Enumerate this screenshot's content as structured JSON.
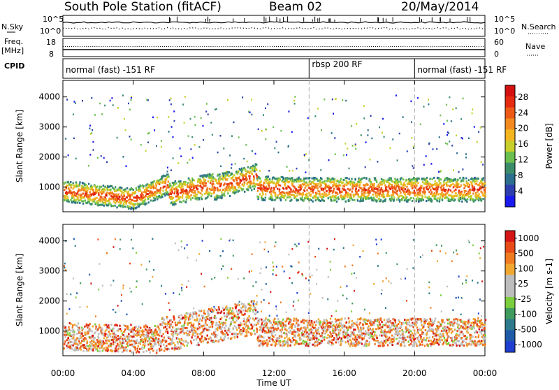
{
  "header": {
    "station": "South Pole Station (fitACF)",
    "beam": "Beam 02",
    "date": "20/May/2014"
  },
  "top_labels": {
    "nsky": "N.Sky",
    "nsearch": "N.Search",
    "freq": "Freq.",
    "freq_unit": "[MHz]",
    "nave": "Nave",
    "cpid": "CPID",
    "noise_ticks_left": [
      "10^5",
      "10^0"
    ],
    "noise_ticks_right": [
      "10^5",
      "10^0"
    ],
    "freq_ticks": [
      "18",
      "8"
    ],
    "nave_ticks": [
      "60",
      "0"
    ]
  },
  "modes": [
    {
      "label": "normal (fast) -151 RF",
      "start_h": 0,
      "end_h": 14
    },
    {
      "label": "rbsp 200 RF",
      "start_h": 14,
      "end_h": 20
    },
    {
      "label": "normal (fast) -151 RF",
      "start_h": 20,
      "end_h": 24
    }
  ],
  "colors": {
    "power_scale": [
      "#1a1aee",
      "#2d3fae",
      "#2b6e8e",
      "#3b8c6a",
      "#6bbf4e",
      "#c9cf2a",
      "#f4b51f",
      "#f48a1f",
      "#ee5a15",
      "#e62a10",
      "#d41010"
    ],
    "velocity_scale": [
      "#1f3fd0",
      "#1e5aa8",
      "#2c7a8c",
      "#3f9a5e",
      "#7ccf3c",
      "#bdbdbd",
      "#bdbdbd",
      "#f0a830",
      "#f07a20",
      "#e84a18",
      "#d61515"
    ]
  },
  "chart_data": [
    {
      "type": "heatmap",
      "title": "",
      "xlabel": "Time UT",
      "ylabel": "Slant Range [km]",
      "x_ticks": [
        "00:00",
        "04:00",
        "08:00",
        "12:00",
        "16:00",
        "20:00",
        "00:00"
      ],
      "x_range_hours": [
        0,
        24
      ],
      "y_ticks": [
        1000,
        2000,
        3000,
        4000
      ],
      "y_range_km": [
        180,
        4550
      ],
      "colorbar": {
        "label": "Power [dB]",
        "ticks": [
          4,
          8,
          12,
          16,
          20,
          24,
          28
        ],
        "range": [
          0,
          31
        ]
      },
      "scatter_bands": [
        {
          "from_h": 0.0,
          "to_h": 4.0,
          "center_km": [
            900,
            650
          ],
          "width_km": 320
        },
        {
          "from_h": 4.0,
          "to_h": 6.0,
          "center_km": [
            650,
            1150
          ],
          "width_km": 320
        },
        {
          "from_h": 6.0,
          "to_h": 8.5,
          "center_km": [
            800,
            1100
          ],
          "width_km": 360
        },
        {
          "from_h": 8.5,
          "to_h": 11.0,
          "center_km": [
            1000,
            1400
          ],
          "width_km": 380
        },
        {
          "from_h": 11.0,
          "to_h": 14.0,
          "center_km": [
            1000,
            950
          ],
          "width_km": 360
        },
        {
          "from_h": 14.0,
          "to_h": 24.0,
          "center_km": [
            950,
            950
          ],
          "width_km": 360
        }
      ]
    },
    {
      "type": "heatmap",
      "title": "",
      "xlabel": "Time UT",
      "ylabel": "Slant Range [km]",
      "x_ticks": [
        "00:00",
        "04:00",
        "08:00",
        "12:00",
        "16:00",
        "20:00",
        "00:00"
      ],
      "x_range_hours": [
        0,
        24
      ],
      "y_ticks": [
        1000,
        2000,
        3000,
        4000
      ],
      "y_range_km": [
        180,
        4550
      ],
      "colorbar": {
        "label": "Velocity [m s-1]",
        "ticks": [
          1000,
          500,
          100,
          25,
          -25,
          -100,
          -500,
          -1000
        ]
      },
      "scatter_bands": [
        {
          "from_h": 0.0,
          "to_h": 5.5,
          "center_km": [
            850,
            750
          ],
          "width_km": 420
        },
        {
          "from_h": 5.5,
          "to_h": 11.0,
          "center_km": [
            900,
            1500
          ],
          "width_km": 520
        },
        {
          "from_h": 11.0,
          "to_h": 24.0,
          "center_km": [
            1000,
            1000
          ],
          "width_km": 420
        }
      ]
    }
  ]
}
